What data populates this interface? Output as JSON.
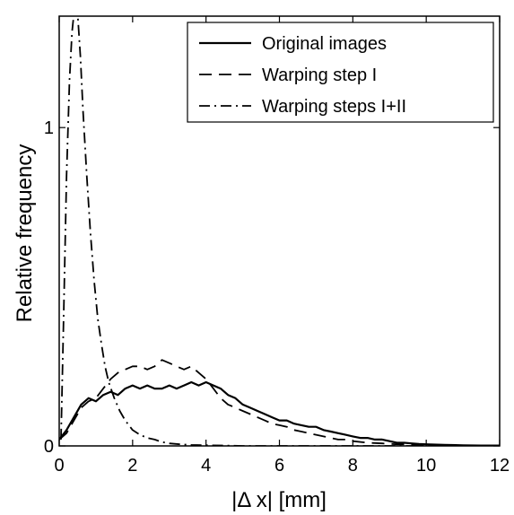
{
  "chart_data": {
    "type": "line",
    "title": "",
    "xlabel": "|Δ x| [mm]",
    "ylabel": "Relative frequency",
    "xlim": [
      0,
      12
    ],
    "ylim": [
      0,
      1.35
    ],
    "xticks": [
      "0",
      "2",
      "4",
      "6",
      "8",
      "10",
      "12"
    ],
    "yticks": [
      "0",
      "1"
    ],
    "grid": false,
    "legend_position": "top-right",
    "series": [
      {
        "name": "Original images",
        "line_style": "solid",
        "x": [
          0,
          0.2,
          0.4,
          0.6,
          0.8,
          1.0,
          1.2,
          1.4,
          1.6,
          1.8,
          2.0,
          2.2,
          2.4,
          2.6,
          2.8,
          3.0,
          3.2,
          3.4,
          3.6,
          3.8,
          4.0,
          4.2,
          4.4,
          4.6,
          4.8,
          5.0,
          5.2,
          5.4,
          5.6,
          5.8,
          6.0,
          6.2,
          6.4,
          6.6,
          6.8,
          7.0,
          7.2,
          7.4,
          7.6,
          7.8,
          8.0,
          8.2,
          8.4,
          8.6,
          8.8,
          9.0,
          9.2,
          9.4,
          9.6,
          9.8,
          10.0,
          10.5,
          11.0,
          11.5,
          12.0
        ],
        "y": [
          0.02,
          0.05,
          0.09,
          0.13,
          0.15,
          0.14,
          0.16,
          0.17,
          0.16,
          0.18,
          0.19,
          0.18,
          0.19,
          0.18,
          0.18,
          0.19,
          0.18,
          0.19,
          0.2,
          0.19,
          0.2,
          0.19,
          0.18,
          0.16,
          0.15,
          0.13,
          0.12,
          0.11,
          0.1,
          0.09,
          0.08,
          0.08,
          0.07,
          0.065,
          0.06,
          0.06,
          0.05,
          0.045,
          0.04,
          0.035,
          0.03,
          0.025,
          0.025,
          0.02,
          0.02,
          0.015,
          0.01,
          0.01,
          0.008,
          0.006,
          0.005,
          0.003,
          0.002,
          0.001,
          0.001
        ]
      },
      {
        "name": "Warping step I",
        "line_style": "dashed",
        "x": [
          0,
          0.2,
          0.4,
          0.6,
          0.8,
          1.0,
          1.2,
          1.4,
          1.6,
          1.8,
          2.0,
          2.2,
          2.4,
          2.6,
          2.8,
          3.0,
          3.2,
          3.4,
          3.6,
          3.8,
          4.0,
          4.2,
          4.4,
          4.6,
          4.8,
          5.0,
          5.2,
          5.4,
          5.6,
          5.8,
          6.0,
          6.2,
          6.4,
          6.6,
          6.8,
          7.0,
          7.2,
          7.4,
          7.6,
          7.8,
          8.0,
          8.4,
          8.8,
          9.2,
          9.6,
          10.0,
          11.0,
          12.0
        ],
        "y": [
          0.02,
          0.04,
          0.08,
          0.12,
          0.14,
          0.15,
          0.18,
          0.21,
          0.23,
          0.24,
          0.25,
          0.25,
          0.24,
          0.25,
          0.27,
          0.26,
          0.25,
          0.24,
          0.25,
          0.23,
          0.21,
          0.18,
          0.15,
          0.13,
          0.12,
          0.11,
          0.1,
          0.09,
          0.08,
          0.07,
          0.065,
          0.06,
          0.05,
          0.045,
          0.04,
          0.035,
          0.03,
          0.025,
          0.02,
          0.02,
          0.015,
          0.01,
          0.008,
          0.005,
          0.004,
          0.003,
          0.001,
          0.0
        ]
      },
      {
        "name": "Warping steps I+II",
        "line_style": "dash-dot",
        "x": [
          0.05,
          0.12,
          0.2,
          0.28,
          0.35,
          0.42,
          0.5,
          0.58,
          0.65,
          0.75,
          0.85,
          0.95,
          1.05,
          1.15,
          1.25,
          1.35,
          1.5,
          1.65,
          1.8,
          2.0,
          2.2,
          2.4,
          2.6,
          2.8,
          3.0,
          3.3,
          3.6,
          4.0,
          4.5,
          5.0,
          6.0,
          7.0,
          8.0,
          10.0,
          12.0
        ],
        "y": [
          0.02,
          0.4,
          0.85,
          1.15,
          1.3,
          1.38,
          1.36,
          1.22,
          1.05,
          0.85,
          0.67,
          0.52,
          0.4,
          0.32,
          0.25,
          0.2,
          0.15,
          0.11,
          0.08,
          0.05,
          0.035,
          0.025,
          0.02,
          0.012,
          0.008,
          0.005,
          0.003,
          0.002,
          0.001,
          0.0,
          0.0,
          0.0,
          0.0,
          0.0,
          0.0
        ]
      }
    ]
  }
}
